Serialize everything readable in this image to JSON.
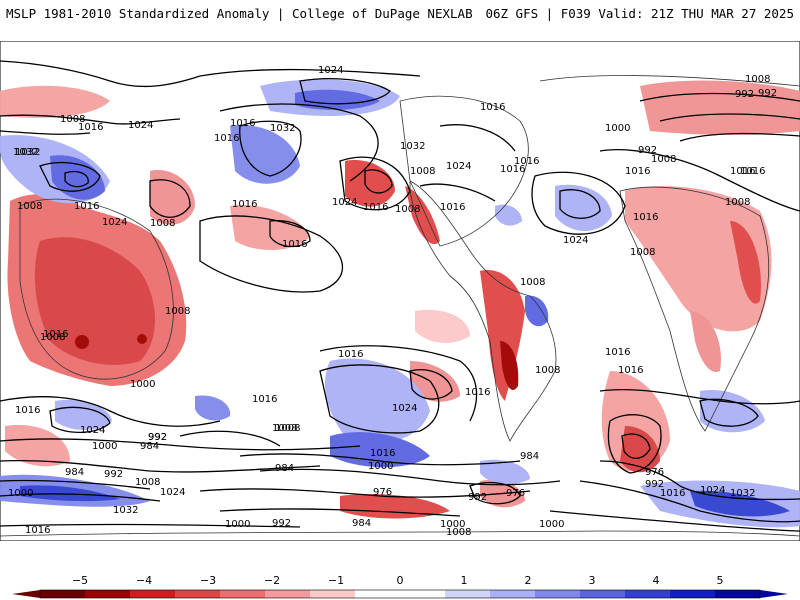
{
  "header": {
    "left_title": "MSLP 1981-2010 Standardized Anomaly | College of DuPage NEXLAB",
    "right_title": "06Z GFS | F039 Valid: 21Z THU MAR 27 2025"
  },
  "map": {
    "projection": "cylindrical (Pacific-centered)",
    "contour_labels": [
      "1024",
      "1008",
      "992",
      "1016",
      "1024",
      "1032",
      "1016",
      "1008",
      "1016",
      "1000",
      "992",
      "1008",
      "1016",
      "1032",
      "1016",
      "1016",
      "1024",
      "1032",
      "1008",
      "1024",
      "1016",
      "1016",
      "1016",
      "1008",
      "1016",
      "1016",
      "1024",
      "1008",
      "1024",
      "1016",
      "1008",
      "1008",
      "1016",
      "1016",
      "1008",
      "1016",
      "1016",
      "1008",
      "1016",
      "1024",
      "1016",
      "1008",
      "1000",
      "992",
      "1024",
      "992",
      "984",
      "1000",
      "1008",
      "984",
      "992",
      "1016",
      "984",
      "1000",
      "976",
      "984",
      "976",
      "992",
      "976",
      "992",
      "1016",
      "1024",
      "1032",
      "1032",
      "1000",
      "992",
      "984",
      "1008",
      "1000",
      "1016",
      "1016",
      "1032",
      "1024",
      "1008",
      "1000",
      "1008",
      "1016",
      "1000",
      "1008",
      "992",
      "1016",
      "1008",
      "1016"
    ],
    "colors": {
      "ocean_land_background": "#ffffff",
      "strong_negative": "#b00000",
      "negative": "#e84040",
      "weak_negative": "#f5a0a0",
      "weak_positive": "#aab0f5",
      "positive": "#5060e0",
      "strong_positive": "#1020c0",
      "contour": "#000000",
      "coastline": "#333333"
    }
  },
  "colorbar": {
    "ticks": [
      "−5",
      "−4",
      "−3",
      "−2",
      "−1",
      "0",
      "1",
      "2",
      "3",
      "4",
      "5"
    ],
    "colors": [
      "#6a0000",
      "#a00000",
      "#cc2020",
      "#e04545",
      "#ec6e6e",
      "#f59a9a",
      "#fcc8c8",
      "#ffffff",
      "#ffffff",
      "#d0d4fa",
      "#aab0f5",
      "#8088ec",
      "#5a64e0",
      "#3040d0",
      "#1020c0",
      "#0008a0"
    ]
  }
}
